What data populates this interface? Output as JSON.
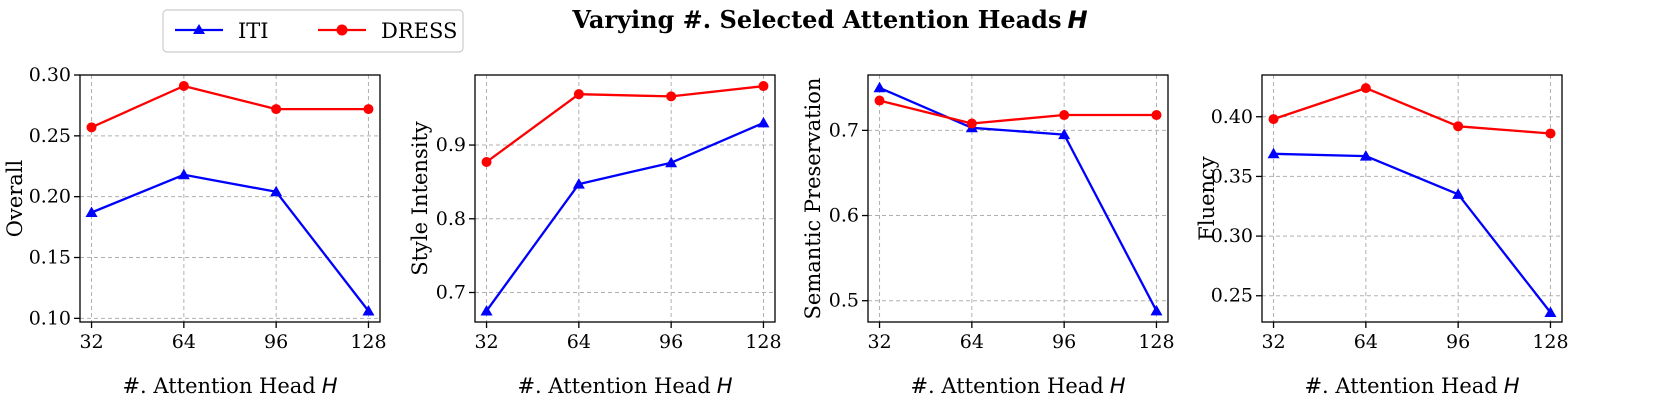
{
  "title": "Varying #. Selected Attention Heads",
  "title_symbol": "H",
  "legend": [
    {
      "name": "ITI",
      "color": "#0000ff",
      "marker": "triangle"
    },
    {
      "name": "DRESS",
      "color": "#ff0000",
      "marker": "circle"
    }
  ],
  "chart_data": [
    {
      "type": "line",
      "xlabel": "#. Attention Head",
      "xlabel_symbol": "H",
      "ylabel": "Overall",
      "x": [
        32,
        64,
        96,
        128
      ],
      "x_ticks": [
        "32",
        "64",
        "96",
        "128"
      ],
      "xlim": [
        28,
        132
      ],
      "ylim": [
        0.097,
        0.3
      ],
      "y_ticks": [
        0.1,
        0.15,
        0.2,
        0.25,
        0.3
      ],
      "y_tick_labels": [
        "0.10",
        "0.15",
        "0.20",
        "0.25",
        "0.30"
      ],
      "grid": true,
      "series": [
        {
          "name": "ITI",
          "color": "#0000ff",
          "marker": "triangle",
          "values": [
            0.187,
            0.218,
            0.204,
            0.106
          ]
        },
        {
          "name": "DRESS",
          "color": "#ff0000",
          "marker": "circle",
          "values": [
            0.257,
            0.291,
            0.272,
            0.272
          ]
        }
      ]
    },
    {
      "type": "line",
      "xlabel": "#. Attention Head",
      "xlabel_symbol": "H",
      "ylabel": "Style Intensity",
      "x": [
        32,
        64,
        96,
        128
      ],
      "x_ticks": [
        "32",
        "64",
        "96",
        "128"
      ],
      "xlim": [
        28,
        132
      ],
      "ylim": [
        0.66,
        0.995
      ],
      "y_ticks": [
        0.7,
        0.8,
        0.9
      ],
      "y_tick_labels": [
        "0.7",
        "0.8",
        "0.9"
      ],
      "grid": true,
      "series": [
        {
          "name": "ITI",
          "color": "#0000ff",
          "marker": "triangle",
          "values": [
            0.675,
            0.847,
            0.876,
            0.93
          ]
        },
        {
          "name": "DRESS",
          "color": "#ff0000",
          "marker": "circle",
          "values": [
            0.877,
            0.969,
            0.966,
            0.98
          ]
        }
      ]
    },
    {
      "type": "line",
      "xlabel": "#. Attention Head",
      "xlabel_symbol": "H",
      "ylabel": "Semantic Preservation",
      "x": [
        32,
        64,
        96,
        128
      ],
      "x_ticks": [
        "32",
        "64",
        "96",
        "128"
      ],
      "xlim": [
        28,
        132
      ],
      "ylim": [
        0.475,
        0.765
      ],
      "y_ticks": [
        0.5,
        0.6,
        0.7
      ],
      "y_tick_labels": [
        "0.5",
        "0.6",
        "0.7"
      ],
      "grid": true,
      "series": [
        {
          "name": "ITI",
          "color": "#0000ff",
          "marker": "triangle",
          "values": [
            0.75,
            0.703,
            0.695,
            0.488
          ]
        },
        {
          "name": "DRESS",
          "color": "#ff0000",
          "marker": "circle",
          "values": [
            0.735,
            0.708,
            0.718,
            0.718
          ]
        }
      ]
    },
    {
      "type": "line",
      "xlabel": "#. Attention Head",
      "xlabel_symbol": "H",
      "ylabel": "Fluency",
      "x": [
        32,
        64,
        96,
        128
      ],
      "x_ticks": [
        "32",
        "64",
        "96",
        "128"
      ],
      "xlim": [
        28,
        132
      ],
      "ylim": [
        0.228,
        0.435
      ],
      "y_ticks": [
        0.25,
        0.3,
        0.35,
        0.4
      ],
      "y_tick_labels": [
        "0.25",
        "0.30",
        "0.35",
        "0.40"
      ],
      "grid": true,
      "series": [
        {
          "name": "ITI",
          "color": "#0000ff",
          "marker": "triangle",
          "values": [
            0.369,
            0.367,
            0.335,
            0.236
          ]
        },
        {
          "name": "DRESS",
          "color": "#ff0000",
          "marker": "circle",
          "values": [
            0.398,
            0.424,
            0.392,
            0.386
          ]
        }
      ]
    }
  ]
}
